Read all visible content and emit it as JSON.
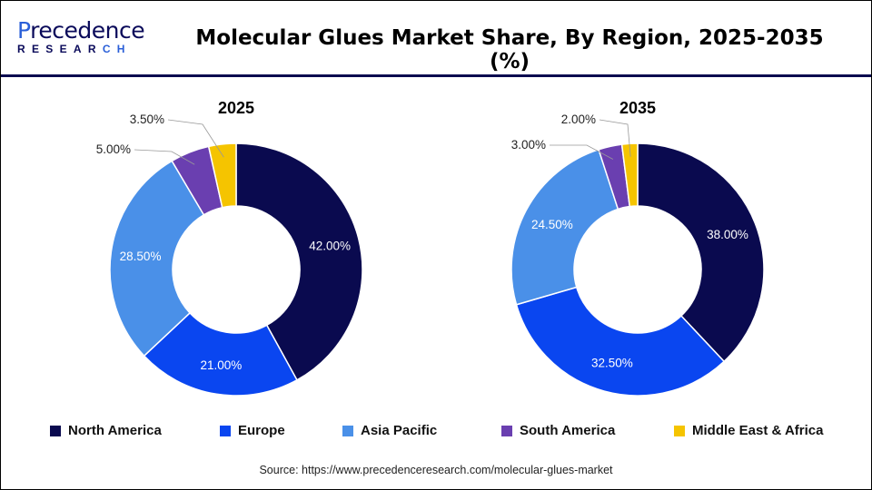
{
  "logo": {
    "line1": "Precedence",
    "line2": "RESEARCH"
  },
  "title": "Molecular Glues Market Share, By Region, 2025-2035 (%)",
  "source": "Source: https://www.precedenceresearch.com/molecular-glues-market",
  "chart_data": [
    {
      "type": "pie",
      "variant": "donut",
      "title": "2025",
      "categories": [
        "North America",
        "Europe",
        "Asia Pacific",
        "South America",
        "Middle East & Africa"
      ],
      "values": [
        42.0,
        21.0,
        28.5,
        5.0,
        3.5
      ],
      "labels": [
        "42.00%",
        "21.00%",
        "28.50%",
        "5.00%",
        "3.50%"
      ]
    },
    {
      "type": "pie",
      "variant": "donut",
      "title": "2035",
      "categories": [
        "North America",
        "Europe",
        "Asia Pacific",
        "South America",
        "Middle East & Africa"
      ],
      "values": [
        38.0,
        32.5,
        24.5,
        3.0,
        2.0
      ],
      "labels": [
        "38.00%",
        "32.50%",
        "24.50%",
        "3.00%",
        "2.00%"
      ]
    }
  ],
  "legend": {
    "position": "bottom",
    "items": [
      {
        "label": "North America",
        "color": "#0a0a4f"
      },
      {
        "label": "Europe",
        "color": "#0a46f0"
      },
      {
        "label": "Asia Pacific",
        "color": "#4a90e8"
      },
      {
        "label": "South America",
        "color": "#6a3fb0"
      },
      {
        "label": "Middle East & Africa",
        "color": "#f5c400"
      }
    ]
  }
}
